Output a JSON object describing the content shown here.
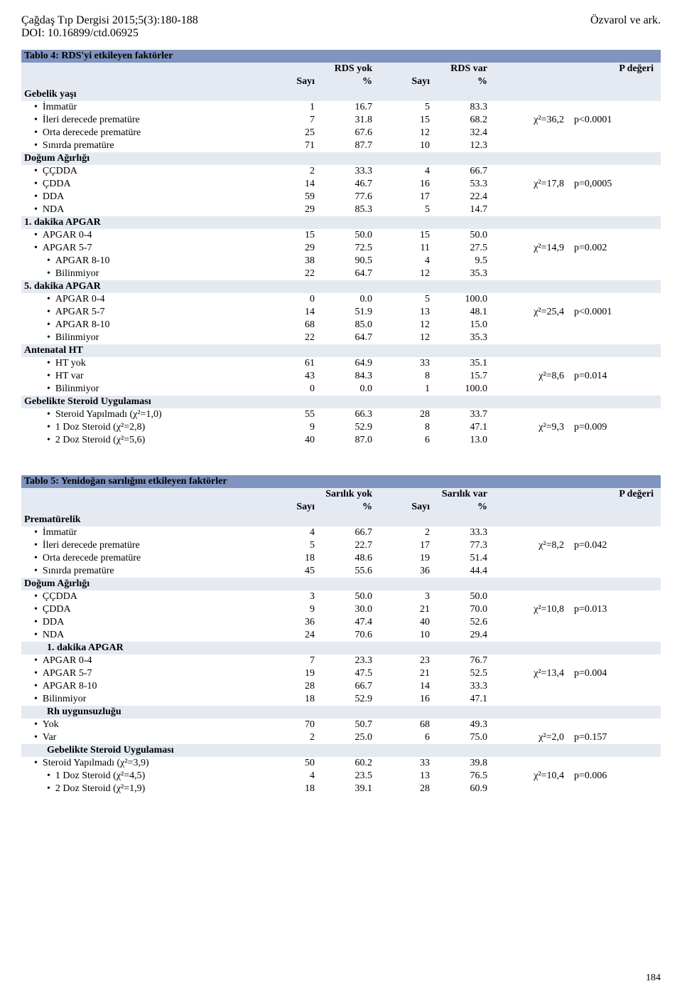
{
  "header": {
    "journal": "Çağdaş Tıp Dergisi 2015;5(3):180-188",
    "doi": "DOI: 10.16899/ctd.06925",
    "authors": "Özvarol ve ark.",
    "page": "184"
  },
  "tables": [
    {
      "title": "Tablo 4: RDS'yi etkileyen faktörler",
      "col_groups": [
        "RDS yok",
        "RDS var",
        "P değeri"
      ],
      "sub_headers": [
        "Sayı",
        "%",
        "Sayı",
        "%"
      ],
      "rows": [
        {
          "type": "section",
          "label": "Gebelik yaşı"
        },
        {
          "type": "data",
          "indent": 1,
          "label": "İmmatür",
          "c": [
            "1",
            "16.7",
            "5",
            "83.3"
          ],
          "chi": "",
          "p": ""
        },
        {
          "type": "data",
          "indent": 1,
          "label": "İleri derecede prematüre",
          "c": [
            "7",
            "31.8",
            "15",
            "68.2"
          ],
          "chi": "χ²=36,2",
          "p": "p<0.0001"
        },
        {
          "type": "data",
          "indent": 1,
          "label": "Orta derecede prematüre",
          "c": [
            "25",
            "67.6",
            "12",
            "32.4"
          ],
          "chi": "",
          "p": ""
        },
        {
          "type": "data",
          "indent": 1,
          "label": "Sınırda prematüre",
          "c": [
            "71",
            "87.7",
            "10",
            "12.3"
          ],
          "chi": "",
          "p": ""
        },
        {
          "type": "section",
          "label": "Doğum Ağırlığı"
        },
        {
          "type": "data",
          "indent": 1,
          "label": "ÇÇDDA",
          "c": [
            "2",
            "33.3",
            "4",
            "66.7"
          ],
          "chi": "",
          "p": ""
        },
        {
          "type": "data",
          "indent": 1,
          "label": "ÇDDA",
          "c": [
            "14",
            "46.7",
            "16",
            "53.3"
          ],
          "chi": "χ²=17,8",
          "p": "p=0,0005"
        },
        {
          "type": "data",
          "indent": 1,
          "label": "DDA",
          "c": [
            "59",
            "77.6",
            "17",
            "22.4"
          ],
          "chi": "",
          "p": ""
        },
        {
          "type": "data",
          "indent": 1,
          "label": "NDA",
          "c": [
            "29",
            "85.3",
            "5",
            "14.7"
          ],
          "chi": "",
          "p": ""
        },
        {
          "type": "section",
          "label": "1. dakika APGAR"
        },
        {
          "type": "data",
          "indent": 1,
          "label": "APGAR 0-4",
          "c": [
            "15",
            "50.0",
            "15",
            "50.0"
          ],
          "chi": "",
          "p": ""
        },
        {
          "type": "data",
          "indent": 1,
          "label": "APGAR 5-7",
          "c": [
            "29",
            "72.5",
            "11",
            "27.5"
          ],
          "chi": "χ²=14,9",
          "p": "p=0.002"
        },
        {
          "type": "data",
          "indent": 2,
          "label": "APGAR 8-10",
          "c": [
            "38",
            "90.5",
            "4",
            "9.5"
          ],
          "chi": "",
          "p": ""
        },
        {
          "type": "data",
          "indent": 2,
          "label": "Bilinmiyor",
          "c": [
            "22",
            "64.7",
            "12",
            "35.3"
          ],
          "chi": "",
          "p": ""
        },
        {
          "type": "section",
          "label": "5. dakika APGAR"
        },
        {
          "type": "data",
          "indent": 2,
          "label": "APGAR 0-4",
          "c": [
            "0",
            "0.0",
            "5",
            "100.0"
          ],
          "chi": "",
          "p": ""
        },
        {
          "type": "data",
          "indent": 2,
          "label": "APGAR 5-7",
          "c": [
            "14",
            "51.9",
            "13",
            "48.1"
          ],
          "chi": "χ²=25,4",
          "p": "p<0.0001"
        },
        {
          "type": "data",
          "indent": 2,
          "label": "APGAR 8-10",
          "c": [
            "68",
            "85.0",
            "12",
            "15.0"
          ],
          "chi": "",
          "p": ""
        },
        {
          "type": "data",
          "indent": 2,
          "label": "Bilinmiyor",
          "c": [
            "22",
            "64.7",
            "12",
            "35.3"
          ],
          "chi": "",
          "p": ""
        },
        {
          "type": "section",
          "label": "Antenatal HT",
          "noindent": true
        },
        {
          "type": "data",
          "indent": 2,
          "label": "HT yok",
          "c": [
            "61",
            "64.9",
            "33",
            "35.1"
          ],
          "chi": "",
          "p": ""
        },
        {
          "type": "data",
          "indent": 2,
          "label": "HT var",
          "c": [
            "43",
            "84.3",
            "8",
            "15.7"
          ],
          "chi": "χ²=8,6",
          "p": "p=0.014"
        },
        {
          "type": "data",
          "indent": 2,
          "label": "Bilinmiyor",
          "c": [
            "0",
            "0.0",
            "1",
            "100.0"
          ],
          "chi": "",
          "p": ""
        },
        {
          "type": "section",
          "label": "Gebelikte Steroid Uygulaması",
          "noindent": true
        },
        {
          "type": "data",
          "indent": 2,
          "label": "Steroid Yapılmadı (χ²=1,0)",
          "c": [
            "55",
            "66.3",
            "28",
            "33.7"
          ],
          "chi": "",
          "p": ""
        },
        {
          "type": "data",
          "indent": 2,
          "label": "1 Doz Steroid (χ²=2,8)",
          "c": [
            "9",
            "52.9",
            "8",
            "47.1"
          ],
          "chi": "χ²=9,3",
          "p": "p=0.009"
        },
        {
          "type": "data",
          "indent": 2,
          "label": "2 Doz Steroid (χ²=5,6)",
          "c": [
            "40",
            "87.0",
            "6",
            "13.0"
          ],
          "chi": "",
          "p": ""
        }
      ]
    },
    {
      "title": "Tablo 5: Yenidoğan sarılığını etkileyen faktörler",
      "col_groups": [
        "Sarılık yok",
        "Sarılık var",
        "P değeri"
      ],
      "sub_headers": [
        "Sayı",
        "%",
        "Sayı",
        "%"
      ],
      "rows": [
        {
          "type": "section",
          "label": "Prematürelik",
          "noindent": true
        },
        {
          "type": "data",
          "indent": 1,
          "label": "İmmatür",
          "c": [
            "4",
            "66.7",
            "2",
            "33.3"
          ],
          "chi": "",
          "p": ""
        },
        {
          "type": "data",
          "indent": 1,
          "label": "İleri derecede prematüre",
          "c": [
            "5",
            "22.7",
            "17",
            "77.3"
          ],
          "chi": "χ²=8,2",
          "p": "p=0.042"
        },
        {
          "type": "data",
          "indent": 1,
          "label": "Orta derecede prematüre",
          "c": [
            "18",
            "48.6",
            "19",
            "51.4"
          ],
          "chi": "",
          "p": ""
        },
        {
          "type": "data",
          "indent": 1,
          "label": "Sınırda prematüre",
          "c": [
            "45",
            "55.6",
            "36",
            "44.4"
          ],
          "chi": "",
          "p": ""
        },
        {
          "type": "section",
          "label": "Doğum Ağırlığı",
          "noindent": true
        },
        {
          "type": "data",
          "indent": 1,
          "label": "ÇÇDDA",
          "c": [
            "3",
            "50.0",
            "3",
            "50.0"
          ],
          "chi": "",
          "p": ""
        },
        {
          "type": "data",
          "indent": 1,
          "label": "ÇDDA",
          "c": [
            "9",
            "30.0",
            "21",
            "70.0"
          ],
          "chi": "χ²=10,8",
          "p": "p=0.013"
        },
        {
          "type": "data",
          "indent": 1,
          "label": "DDA",
          "c": [
            "36",
            "47.4",
            "40",
            "52.6"
          ],
          "chi": "",
          "p": ""
        },
        {
          "type": "data",
          "indent": 1,
          "label": "NDA",
          "c": [
            "24",
            "70.6",
            "10",
            "29.4"
          ],
          "chi": "",
          "p": ""
        },
        {
          "type": "section",
          "indent": 2,
          "label": "1. dakika APGAR"
        },
        {
          "type": "data",
          "indent": 1,
          "label": "APGAR 0-4",
          "c": [
            "7",
            "23.3",
            "23",
            "76.7"
          ],
          "chi": "",
          "p": ""
        },
        {
          "type": "data",
          "indent": 1,
          "label": "APGAR 5-7",
          "c": [
            "19",
            "47.5",
            "21",
            "52.5"
          ],
          "chi": "χ²=13,4",
          "p": "p=0.004"
        },
        {
          "type": "data",
          "indent": 1,
          "label": "APGAR 8-10",
          "c": [
            "28",
            "66.7",
            "14",
            "33.3"
          ],
          "chi": "",
          "p": ""
        },
        {
          "type": "data",
          "indent": 1,
          "label": "Bilinmiyor",
          "c": [
            "18",
            "52.9",
            "16",
            "47.1"
          ],
          "chi": "",
          "p": ""
        },
        {
          "type": "section",
          "indent": 2,
          "label": "Rh uygunsuzluğu"
        },
        {
          "type": "data",
          "indent": 1,
          "label": "Yok",
          "c": [
            "70",
            "50.7",
            "68",
            "49.3"
          ],
          "chi": "",
          "p": ""
        },
        {
          "type": "data",
          "indent": 1,
          "label": "Var",
          "c": [
            "2",
            "25.0",
            "6",
            "75.0"
          ],
          "chi": "χ²=2,0",
          "p": "p=0.157"
        },
        {
          "type": "section",
          "indent": 2,
          "label": "Gebelikte Steroid Uygulaması"
        },
        {
          "type": "data",
          "indent": 1,
          "label": "Steroid Yapılmadı (χ²=3,9)",
          "c": [
            "50",
            "60.2",
            "33",
            "39.8"
          ],
          "chi": "",
          "p": ""
        },
        {
          "type": "data",
          "indent": 2,
          "label": "1 Doz Steroid (χ²=4,5)",
          "c": [
            "4",
            "23.5",
            "13",
            "76.5"
          ],
          "chi": "χ²=10,4",
          "p": "p=0.006"
        },
        {
          "type": "data",
          "indent": 2,
          "label": "2 Doz Steroid (χ²=1,9)",
          "c": [
            "18",
            "39.1",
            "28",
            "60.9"
          ],
          "chi": "",
          "p": ""
        }
      ]
    }
  ]
}
